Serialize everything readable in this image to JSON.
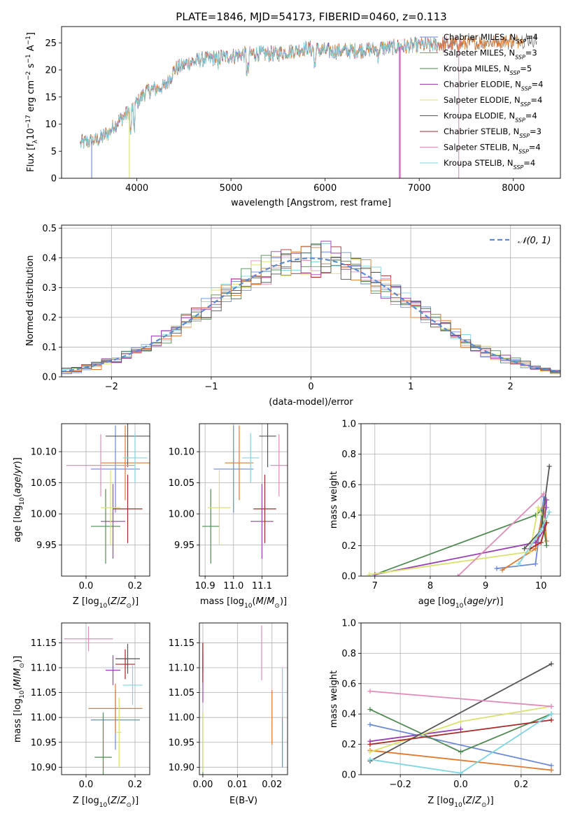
{
  "figure": {
    "title": "PLATE=1846, MJD=54173, FIBERID=0460, z=0.113"
  },
  "colors": [
    "#6a89d6",
    "#e07a2e",
    "#4f8a52",
    "#9a3fb3",
    "#d9e26f",
    "#555555",
    "#a82828",
    "#e38bb8",
    "#7fd6e0"
  ],
  "legend_labels": [
    {
      "text": "Chabrier MILES, N",
      "sub": "SSP",
      "tail": "=4"
    },
    {
      "text": "Salpeter MILES, N",
      "sub": "SSP",
      "tail": "=3"
    },
    {
      "text": "Kroupa MILES, N",
      "sub": "SSP",
      "tail": "=5"
    },
    {
      "text": "Chabrier ELODIE, N",
      "sub": "SSP",
      "tail": "=4"
    },
    {
      "text": "Salpeter ELODIE, N",
      "sub": "SSP",
      "tail": "=4"
    },
    {
      "text": "Kroupa ELODIE, N",
      "sub": "SSP",
      "tail": "=4"
    },
    {
      "text": "Chabrier STELIB, N",
      "sub": "SSP",
      "tail": "=3"
    },
    {
      "text": "Salpeter STELIB, N",
      "sub": "SSP",
      "tail": "=4"
    },
    {
      "text": "Kroupa STELIB, N",
      "sub": "SSP",
      "tail": "=4"
    }
  ],
  "chart_data": [
    {
      "id": "spectrum",
      "type": "line",
      "xlabel": "wavelength [Angstrom, rest frame]",
      "ylabel": "Flux [f",
      "xlim": [
        3200,
        8500
      ],
      "ylim": [
        0,
        28
      ],
      "xticks": [
        4000,
        5000,
        6000,
        7000,
        8000
      ],
      "yticks": [
        0,
        5,
        10,
        15,
        20,
        25
      ],
      "grid": false,
      "legend": "upper right",
      "continuum": {
        "x": [
          3400,
          3500,
          3600,
          3700,
          3800,
          3900,
          4000,
          4100,
          4200,
          4300,
          4400,
          4500,
          4700,
          5000,
          5200,
          5500,
          5800,
          6000,
          6300,
          6600,
          7000,
          7400,
          7800,
          8200
        ],
        "y": [
          6.5,
          6.8,
          7.2,
          8.5,
          10.5,
          12,
          14,
          16,
          16.5,
          17,
          20,
          21,
          22,
          22.5,
          23,
          23,
          24,
          23.5,
          23.5,
          24,
          24.5,
          24.8,
          25.2,
          25.5
        ]
      },
      "spike_dips": [
        {
          "series": 0,
          "x": 3520
        },
        {
          "series": 4,
          "x": 3920
        },
        {
          "series": 7,
          "x": 6800
        },
        {
          "series": 7,
          "x": 7420
        },
        {
          "series": 3,
          "x": 6790
        }
      ]
    },
    {
      "id": "residuals",
      "type": "histogram",
      "xlabel": "(data-model)/error",
      "ylabel": "Normed distribution",
      "xlim": [
        -2.5,
        2.5
      ],
      "ylim": [
        0,
        0.51
      ],
      "xticks": [
        -2,
        -1,
        0,
        1,
        2
      ],
      "yticks": [
        0.0,
        0.1,
        0.2,
        0.3,
        0.4,
        0.5
      ],
      "grid": true,
      "legend": "upper right",
      "legend_label": "N(0,1)",
      "bin_width": 0.1,
      "gaussian": {
        "mean": 0,
        "sigma": 1
      }
    },
    {
      "id": "age_vs_Z",
      "type": "errorbar",
      "xlabel": "Z [log",
      "ylabel": "age  [log",
      "xlim": [
        -0.1,
        0.26
      ],
      "ylim": [
        9.9,
        10.145
      ],
      "xticks": [
        0.0,
        0.2
      ],
      "yticks": [
        9.95,
        10.0,
        10.05,
        10.1
      ],
      "grid": true,
      "points": [
        {
          "series": 0,
          "x": 0.12,
          "y": 10.072,
          "xerr": 0.1,
          "yerr": 0.07
        },
        {
          "series": 1,
          "x": 0.16,
          "y": 10.082,
          "xerr": 0.1,
          "yerr": 0.06
        },
        {
          "series": 2,
          "x": 0.08,
          "y": 9.98,
          "xerr": 0.06,
          "yerr": 0.06
        },
        {
          "series": 3,
          "x": 0.11,
          "y": 9.988,
          "xerr": 0.05,
          "yerr": 0.06
        },
        {
          "series": 4,
          "x": 0.1,
          "y": 10.01,
          "xerr": 0.04,
          "yerr": 0.06
        },
        {
          "series": 5,
          "x": 0.17,
          "y": 10.125,
          "xerr": 0.09,
          "yerr": 0.05
        },
        {
          "series": 6,
          "x": 0.17,
          "y": 10.008,
          "xerr": 0.06,
          "yerr": 0.055
        },
        {
          "series": 7,
          "x": 0.06,
          "y": 10.078,
          "xerr": 0.14,
          "yerr": 0.05
        },
        {
          "series": 8,
          "x": 0.2,
          "y": 10.09,
          "xerr": 0.05,
          "yerr": 0.04
        }
      ]
    },
    {
      "id": "age_vs_mass",
      "type": "errorbar",
      "xlabel": "mass [log",
      "ylabel": "",
      "xlim": [
        10.88,
        11.19
      ],
      "ylim": [
        9.9,
        10.145
      ],
      "xticks": [
        10.9,
        11.0,
        11.1
      ],
      "yticks": [
        9.95,
        10.0,
        10.05,
        10.1
      ],
      "grid": true,
      "points": [
        {
          "series": 0,
          "x": 11.0,
          "y": 10.072,
          "xerr": 0.07,
          "yerr": 0.07
        },
        {
          "series": 1,
          "x": 11.02,
          "y": 10.082,
          "xerr": 0.05,
          "yerr": 0.06
        },
        {
          "series": 2,
          "x": 10.92,
          "y": 9.98,
          "xerr": 0.03,
          "yerr": 0.06
        },
        {
          "series": 3,
          "x": 11.1,
          "y": 9.988,
          "xerr": 0.04,
          "yerr": 0.06
        },
        {
          "series": 4,
          "x": 10.95,
          "y": 10.01,
          "xerr": 0.04,
          "yerr": 0.06
        },
        {
          "series": 5,
          "x": 11.12,
          "y": 10.125,
          "xerr": 0.03,
          "yerr": 0.05
        },
        {
          "series": 6,
          "x": 11.11,
          "y": 10.008,
          "xerr": 0.04,
          "yerr": 0.055
        },
        {
          "series": 7,
          "x": 11.16,
          "y": 10.078,
          "xerr": 0.03,
          "yerr": 0.05
        },
        {
          "series": 8,
          "x": 11.06,
          "y": 10.09,
          "xerr": 0.03,
          "yerr": 0.04
        }
      ]
    },
    {
      "id": "mass_weight_vs_age",
      "type": "line",
      "xlabel": "age  [log",
      "ylabel": "mass weight",
      "xlim": [
        6.75,
        10.35
      ],
      "ylim": [
        0,
        1.0
      ],
      "xticks": [
        7,
        8,
        9,
        10
      ],
      "yticks": [
        0.0,
        0.2,
        0.4,
        0.6,
        0.8,
        1.0
      ],
      "grid": true,
      "series": [
        {
          "series": 0,
          "x": [
            9.2,
            9.9,
            10.05,
            10.1
          ],
          "y": [
            0.05,
            0.08,
            0.52,
            0.45
          ]
        },
        {
          "series": 1,
          "x": [
            9.3,
            9.9,
            10.05,
            10.1
          ],
          "y": [
            0.04,
            0.18,
            0.45,
            0.23
          ]
        },
        {
          "series": 2,
          "x": [
            7.0,
            9.9,
            10.0,
            10.1
          ],
          "y": [
            0.01,
            0.4,
            0.43,
            0.2
          ]
        },
        {
          "series": 3,
          "x": [
            7.0,
            9.9,
            10.05,
            10.1
          ],
          "y": [
            0.01,
            0.22,
            0.3,
            0.5
          ]
        },
        {
          "series": 4,
          "x": [
            6.9,
            9.8,
            9.95,
            10.1
          ],
          "y": [
            0.01,
            0.16,
            0.45,
            0.35
          ]
        },
        {
          "series": 5,
          "x": [
            9.7,
            10.0,
            10.15
          ],
          "y": [
            0.18,
            0.3,
            0.72
          ]
        },
        {
          "series": 6,
          "x": [
            9.8,
            10.0,
            10.1
          ],
          "y": [
            0.18,
            0.22,
            0.35
          ]
        },
        {
          "series": 7,
          "x": [
            8.5,
            10.05
          ],
          "y": [
            0.0,
            0.54
          ]
        },
        {
          "series": 8,
          "x": [
            9.6,
            10.0,
            10.15
          ],
          "y": [
            0.08,
            0.3,
            0.42
          ]
        }
      ]
    },
    {
      "id": "mass_vs_Z",
      "type": "errorbar",
      "xlabel": "Z [log",
      "ylabel": "mass [log",
      "xlim": [
        -0.1,
        0.26
      ],
      "ylim": [
        10.885,
        11.19
      ],
      "xticks": [
        0.0,
        0.2
      ],
      "yticks": [
        10.9,
        10.95,
        11.0,
        11.05,
        11.1,
        11.15
      ],
      "grid": true,
      "points": [
        {
          "series": 0,
          "x": 0.12,
          "y": 10.995,
          "xerr": 0.1,
          "yerr": 0.06
        },
        {
          "series": 1,
          "x": 0.12,
          "y": 11.018,
          "xerr": 0.11,
          "yerr": 0.05
        },
        {
          "series": 2,
          "x": 0.07,
          "y": 10.92,
          "xerr": 0.035,
          "yerr": 0.09
        },
        {
          "series": 3,
          "x": 0.11,
          "y": 11.095,
          "xerr": 0.03,
          "yerr": 0.03
        },
        {
          "series": 4,
          "x": 0.135,
          "y": 10.97,
          "xerr": 0.01,
          "yerr": 0.07
        },
        {
          "series": 5,
          "x": 0.17,
          "y": 11.118,
          "xerr": 0.05,
          "yerr": 0.03
        },
        {
          "series": 6,
          "x": 0.16,
          "y": 11.107,
          "xerr": 0.04,
          "yerr": 0.03
        },
        {
          "series": 7,
          "x": 0.01,
          "y": 11.158,
          "xerr": 0.1,
          "yerr": 0.025
        },
        {
          "series": 8,
          "x": 0.19,
          "y": 11.065,
          "xerr": 0.04,
          "yerr": 0.04
        }
      ]
    },
    {
      "id": "mass_vs_EBV",
      "type": "errorbar",
      "xlabel": "E(B-V)",
      "ylabel": "",
      "xlim": [
        -0.001,
        0.0245
      ],
      "ylim": [
        10.885,
        11.19
      ],
      "xticks": [
        0.0,
        0.01,
        0.02
      ],
      "yticks": [
        10.9,
        10.95,
        11.0,
        11.05,
        11.1,
        11.15
      ],
      "grid": true,
      "points": [
        {
          "series": 0,
          "x": 0.023,
          "y": 10.97,
          "xerr": 0,
          "yerr": 0.07
        },
        {
          "series": 1,
          "x": 0.02,
          "y": 11.0,
          "xerr": 0,
          "yerr": 0.055
        },
        {
          "series": 2,
          "x": 0.0,
          "y": 10.92,
          "xerr": 0,
          "yerr": 0.09
        },
        {
          "series": 3,
          "x": 0.0,
          "y": 11.08,
          "xerr": 0,
          "yerr": 0.05
        },
        {
          "series": 4,
          "x": 0.0,
          "y": 10.95,
          "xerr": 0,
          "yerr": 0.06
        },
        {
          "series": 5,
          "x": 0.0,
          "y": 11.12,
          "xerr": 0,
          "yerr": 0.03
        },
        {
          "series": 6,
          "x": 0.0,
          "y": 11.11,
          "xerr": 0,
          "yerr": 0.04
        },
        {
          "series": 7,
          "x": 0.017,
          "y": 11.13,
          "xerr": 0,
          "yerr": 0.055
        },
        {
          "series": 8,
          "x": 0.023,
          "y": 11.05,
          "xerr": 0,
          "yerr": 0.05
        }
      ]
    },
    {
      "id": "mass_weight_vs_Z",
      "type": "line",
      "xlabel": "Z [log",
      "ylabel": "mass weight",
      "xlim": [
        -0.33,
        0.33
      ],
      "ylim": [
        0,
        1.0
      ],
      "xticks": [
        -0.2,
        0.0,
        0.2
      ],
      "yticks": [
        0.0,
        0.2,
        0.4,
        0.6,
        0.8,
        1.0
      ],
      "grid": true,
      "series": [
        {
          "series": 0,
          "x": [
            -0.3,
            0.3
          ],
          "y": [
            0.33,
            0.06
          ]
        },
        {
          "series": 1,
          "x": [
            -0.3,
            0.3
          ],
          "y": [
            0.16,
            0.03
          ]
        },
        {
          "series": 2,
          "x": [
            -0.3,
            0.0,
            0.3
          ],
          "y": [
            0.43,
            0.15,
            0.4
          ]
        },
        {
          "series": 3,
          "x": [
            -0.3,
            0.0
          ],
          "y": [
            0.22,
            0.3
          ]
        },
        {
          "series": 4,
          "x": [
            -0.3,
            0.0,
            0.3
          ],
          "y": [
            0.15,
            0.35,
            0.45
          ]
        },
        {
          "series": 5,
          "x": [
            -0.3,
            0.3
          ],
          "y": [
            0.09,
            0.73
          ]
        },
        {
          "series": 6,
          "x": [
            -0.3,
            0.3
          ],
          "y": [
            0.2,
            0.36
          ]
        },
        {
          "series": 7,
          "x": [
            -0.3,
            0.3
          ],
          "y": [
            0.55,
            0.45
          ]
        },
        {
          "series": 8,
          "x": [
            -0.3,
            0.0,
            0.3
          ],
          "y": [
            0.1,
            0.01,
            0.4
          ]
        }
      ]
    }
  ]
}
